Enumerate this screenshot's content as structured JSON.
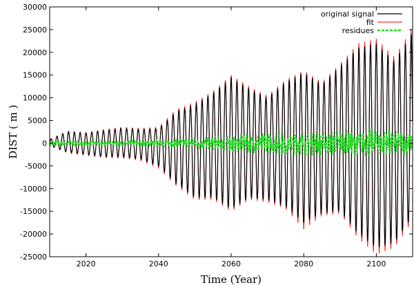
{
  "chart_data": {
    "type": "line",
    "title": "",
    "xlabel": "Time (Year)",
    "ylabel": "DIST ( m )",
    "xlim": [
      2010,
      2110
    ],
    "ylim": [
      -25000,
      30000
    ],
    "xticks": [
      2020,
      2040,
      2060,
      2080,
      2100
    ],
    "yticks": [
      -25000,
      -20000,
      -15000,
      -10000,
      -5000,
      0,
      5000,
      10000,
      15000,
      20000,
      25000,
      30000
    ],
    "grid": false,
    "legend_position": "top-right",
    "oscillation_period_years": 1.6,
    "series": [
      {
        "name": "original signal",
        "style": "solid",
        "color": "#000000",
        "envelope_years": [
          2010,
          2015,
          2020,
          2025,
          2030,
          2035,
          2040,
          2045,
          2050,
          2055,
          2060,
          2065,
          2070,
          2075,
          2080,
          2085,
          2090,
          2095,
          2100,
          2105,
          2110
        ],
        "upper_envelope": [
          800,
          2500,
          2200,
          2800,
          3300,
          3000,
          3200,
          7000,
          8500,
          11000,
          14500,
          12000,
          10000,
          13500,
          15500,
          13000,
          17000,
          21000,
          22000,
          18000,
          24500
        ],
        "lower_envelope": [
          -500,
          -2000,
          -2500,
          -3000,
          -3000,
          -3500,
          -5000,
          -9000,
          -12000,
          -12000,
          -14500,
          -12000,
          -12500,
          -14000,
          -17500,
          -15500,
          -15000,
          -20000,
          -23000,
          -22000,
          -16000
        ]
      },
      {
        "name": "fit",
        "style": "solid",
        "color": "#ff2a2a",
        "envelope_years": [
          2010,
          2015,
          2020,
          2025,
          2030,
          2035,
          2040,
          2045,
          2050,
          2055,
          2060,
          2065,
          2070,
          2075,
          2080,
          2085,
          2090,
          2095,
          2100,
          2105,
          2110
        ],
        "upper_envelope": [
          900,
          2700,
          2400,
          3000,
          3500,
          3300,
          3500,
          7500,
          9000,
          11500,
          15000,
          12500,
          10500,
          14000,
          16000,
          13500,
          17500,
          22000,
          23000,
          19000,
          25500
        ],
        "lower_envelope": [
          -600,
          -2200,
          -2700,
          -3200,
          -3300,
          -3800,
          -5500,
          -9500,
          -12500,
          -12500,
          -15000,
          -12500,
          -13000,
          -14500,
          -19000,
          -16000,
          -15500,
          -21000,
          -24500,
          -23000,
          -17000
        ]
      },
      {
        "name": "residues",
        "style": "dashed",
        "color": "#22dd22",
        "envelope_years": [
          2010,
          2020,
          2030,
          2040,
          2050,
          2060,
          2070,
          2080,
          2090,
          2100,
          2110
        ],
        "amplitude": [
          700,
          600,
          700,
          900,
          1500,
          2000,
          2500,
          2800,
          3000,
          3500,
          2500
        ]
      }
    ]
  }
}
